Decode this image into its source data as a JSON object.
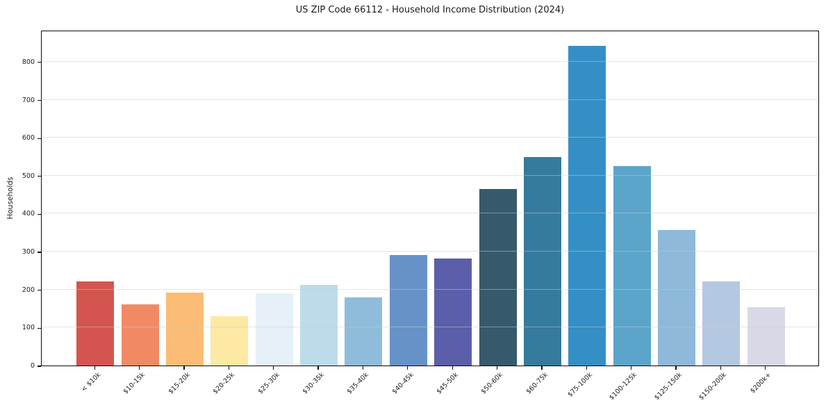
{
  "chart_data": {
    "type": "bar",
    "title": "US ZIP Code 66112 - Household Income Distribution (2024)",
    "xlabel": "",
    "ylabel": "Households",
    "categories": [
      "< $10k",
      "$10-15k",
      "$15-20k",
      "$20-25k",
      "$25-30k",
      "$30-35k",
      "$35-40k",
      "$40-45k",
      "$45-50k",
      "$50-60k",
      "$60-75k",
      "$75-100k",
      "$100-125k",
      "$125-150k",
      "$150-200k",
      "$200k+"
    ],
    "values": [
      222,
      161,
      192,
      130,
      190,
      213,
      179,
      291,
      282,
      464,
      550,
      842,
      526,
      357,
      222,
      154
    ],
    "colors": [
      "#d4554f",
      "#f18a64",
      "#fbbc75",
      "#fde9a4",
      "#e5f1f6",
      "#bcdcea",
      "#8fbcdb",
      "#6792c7",
      "#5b5fa9",
      "#365a6c",
      "#357b9e",
      "#348fc5",
      "#5ba5cb",
      "#8eb9da",
      "#b5c8e2",
      "#d7d9e7"
    ],
    "yticks": [
      0,
      100,
      200,
      300,
      400,
      500,
      600,
      700,
      800
    ],
    "ylim": [
      0,
      884
    ],
    "grid": "horizontal, drawn over bars, light gray",
    "legend": "none",
    "x_tick_rotation_deg": 45
  }
}
